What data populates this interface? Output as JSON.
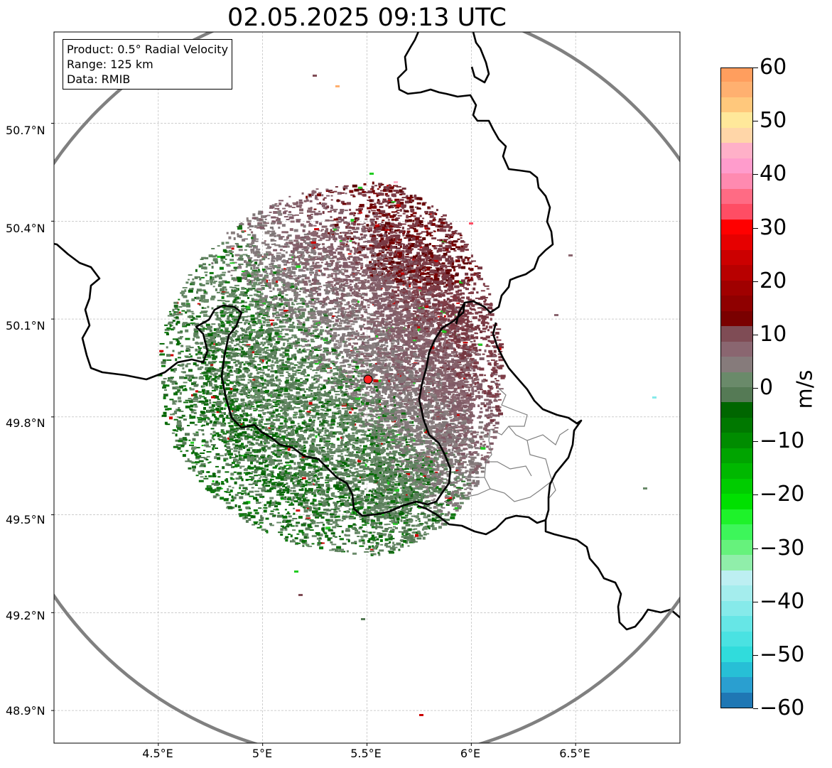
{
  "title": "02.05.2025 09:13 UTC",
  "info": {
    "product": "Product: 0.5° Radial Velocity",
    "range": "Range: 125 km",
    "source": "Data: RMIB"
  },
  "map_data": {
    "extent": {
      "lon": [
        4.0,
        7.0
      ],
      "lat": [
        48.8,
        50.98
      ]
    },
    "radar_site": {
      "lon": 5.505,
      "lat": 49.915
    },
    "range_km": 125,
    "lat_ticks": [
      "50.7°N",
      "50.4°N",
      "50.1°N",
      "49.8°N",
      "49.5°N",
      "49.2°N",
      "48.9°N"
    ],
    "lon_ticks": [
      "4.5°E",
      "5°E",
      "5.5°E",
      "6°E",
      "6.5°E"
    ],
    "lat_values": [
      50.7,
      50.4,
      50.1,
      49.8,
      49.5,
      49.2,
      48.9
    ],
    "lon_values": [
      4.5,
      5.0,
      5.5,
      6.0,
      6.5
    ]
  },
  "colorbar": {
    "unit": "m/s",
    "min": -60,
    "max": 60,
    "ticks": [
      "60",
      "50",
      "40",
      "30",
      "20",
      "10",
      "0",
      "−10",
      "−20",
      "−30",
      "−40",
      "−50",
      "−60"
    ],
    "tick_values": [
      60,
      50,
      40,
      30,
      20,
      10,
      0,
      -10,
      -20,
      -30,
      -40,
      -50,
      -60
    ],
    "colors": [
      "#1f77b4",
      "#2a9fd0",
      "#27bfd6",
      "#30dcdc",
      "#4ae2e2",
      "#66e6e6",
      "#86eaea",
      "#a4eded",
      "#bdeff2",
      "#90eeaa",
      "#66f27c",
      "#3df65a",
      "#1ef22a",
      "#00e000",
      "#00cc00",
      "#00b800",
      "#00a400",
      "#008c00",
      "#007800",
      "#006600",
      "#557a55",
      "#6a8a6a",
      "#867b7b",
      "#8a6670",
      "#7f4c55",
      "#7a0000",
      "#8f0000",
      "#a00000",
      "#b80000",
      "#cc0000",
      "#e60000",
      "#ff0000",
      "#ff4d64",
      "#ff6b84",
      "#ff8ab0",
      "#ff9ccc",
      "#ffb0c8",
      "#ffd6a8",
      "#ffe89a",
      "#ffc87c",
      "#ffb070",
      "#ff9e5e"
    ]
  }
}
